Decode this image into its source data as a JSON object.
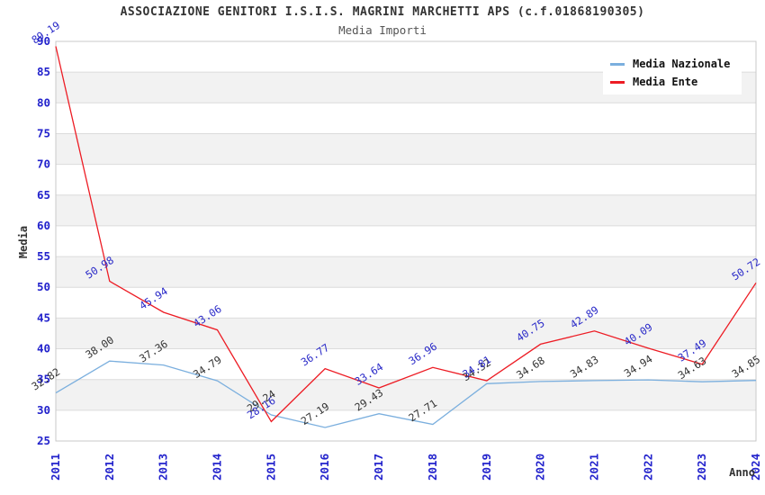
{
  "title": "ASSOCIAZIONE GENITORI I.S.I.S. MAGRINI MARCHETTI APS (c.f.01868190305)",
  "subtitle": "Media Importi",
  "ylabel": "Media",
  "xlabel": "Anno",
  "legend": {
    "position": "top-right",
    "items": [
      {
        "label": "Media Nazionale",
        "color": "#7bafde"
      },
      {
        "label": "Media Ente",
        "color": "#ed1c24"
      }
    ]
  },
  "colors": {
    "title_text": "#333333",
    "subtitle_text": "#555555",
    "axis_text_blue": "#2222cc",
    "gridline": "#dcdcdc",
    "band_gray": "#f2f2f2",
    "plot_border": "#c9c9c9",
    "series_nazionale": "#7bafde",
    "series_ente": "#ed1c24",
    "label_nazionale": "#333333",
    "label_ente": "#2a2ac8"
  },
  "chart_data": {
    "type": "line",
    "title": "ASSOCIAZIONE GENITORI I.S.I.S. MAGRINI MARCHETTI APS (c.f.01868190305)",
    "subtitle": "Media Importi",
    "xlabel": "Anno",
    "ylabel": "Media",
    "ylim": [
      25,
      90
    ],
    "ytick_step": 5,
    "grid": true,
    "alternating_bands": true,
    "legend_position": "top-right",
    "categories": [
      "2011",
      "2012",
      "2013",
      "2014",
      "2015",
      "2016",
      "2017",
      "2018",
      "2019",
      "2020",
      "2021",
      "2022",
      "2023",
      "2024"
    ],
    "series": [
      {
        "name": "Media Nazionale",
        "color": "#7bafde",
        "label_color": "#333333",
        "values": [
          32.82,
          38.0,
          37.36,
          34.79,
          29.24,
          27.19,
          29.43,
          27.71,
          34.32,
          34.68,
          34.83,
          34.94,
          34.63,
          34.85
        ],
        "labels": [
          "32.82",
          "38.00",
          "37.36",
          "34.79",
          "29.24",
          "27.19",
          "29.43",
          "27.71",
          "34.32",
          "34.68",
          "34.83",
          "34.94",
          "34.63",
          "34.85"
        ]
      },
      {
        "name": "Media Ente",
        "color": "#ed1c24",
        "label_color": "#2a2ac8",
        "values": [
          89.19,
          50.98,
          45.94,
          43.06,
          28.16,
          36.77,
          33.64,
          36.96,
          34.81,
          40.75,
          42.89,
          40.09,
          37.49,
          50.72
        ],
        "labels": [
          "89.19",
          "50.98",
          "45.94",
          "43.06",
          "28.16",
          "36.77",
          "33.64",
          "36.96",
          "34.81",
          "40.75",
          "42.89",
          "40.09",
          "37.49",
          "50.72"
        ]
      }
    ]
  }
}
